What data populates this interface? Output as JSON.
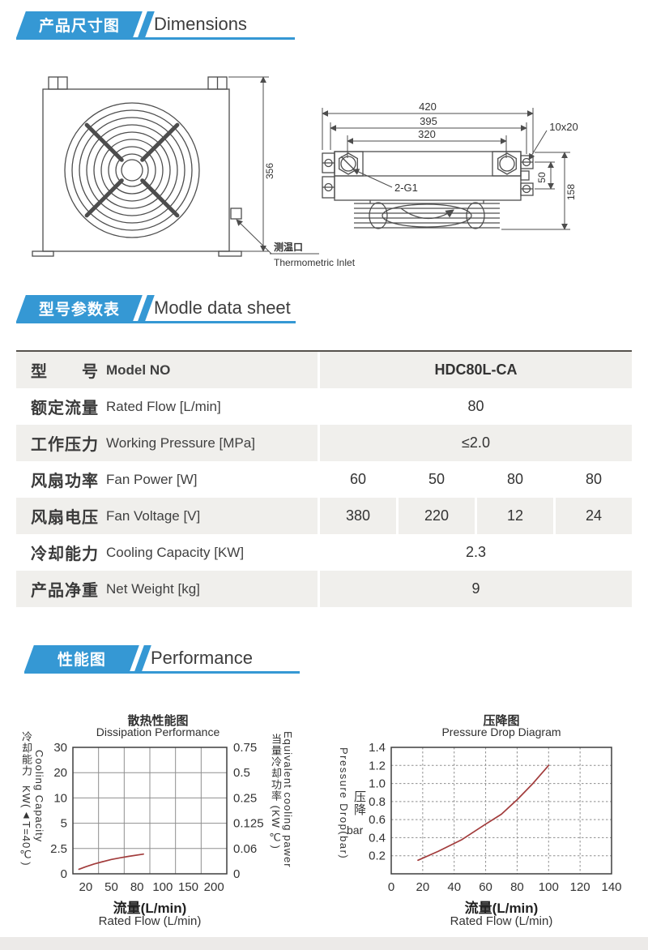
{
  "accent_blue": "#3598d4",
  "curve_red": "#a23c3c",
  "sections": {
    "dimensions": {
      "tab_zh": "产品尺寸图",
      "title_en": "Dimensions"
    },
    "datasheet": {
      "tab_zh": "型号参数表",
      "title_en": "Modle data sheet"
    },
    "performance": {
      "tab_zh": "性能图",
      "title_en": "Performance"
    }
  },
  "drawing": {
    "front_height": "356",
    "thermometric_zh": "测温口",
    "thermometric_en": "Thermometric Inlet",
    "width_outer": "420",
    "width_mid": "395",
    "width_ports": "320",
    "slot_size": "10x20",
    "ports_label": "2-G1",
    "height_side": "158",
    "hole_offset": "50"
  },
  "table": {
    "rows": [
      {
        "zh": "型　　号",
        "en": "Model NO",
        "values": [
          "HDC80L-CA"
        ],
        "span": true,
        "header": true
      },
      {
        "zh": "额定流量",
        "en": "Rated Flow [L/min]",
        "values": [
          "80"
        ],
        "span": true,
        "header": false
      },
      {
        "zh": "工作压力",
        "en": "Working Pressure [MPa]",
        "values": [
          "≤2.0"
        ],
        "span": true,
        "header": false
      },
      {
        "zh": "风扇功率",
        "en": "Fan Power [W]",
        "values": [
          "60",
          "50",
          "80",
          "80"
        ],
        "span": false,
        "header": false
      },
      {
        "zh": "风扇电压",
        "en": "Fan Voltage [V]",
        "values": [
          "380",
          "220",
          "12",
          "24"
        ],
        "span": false,
        "header": false
      },
      {
        "zh": "冷却能力",
        "en": "Cooling Capacity [KW]",
        "values": [
          "2.3"
        ],
        "span": true,
        "header": false
      },
      {
        "zh": "产品净重",
        "en": "Net Weight [kg]",
        "values": [
          "9"
        ],
        "span": true,
        "header": false
      }
    ]
  },
  "chart_data": [
    {
      "type": "line",
      "title": "散热性能图",
      "subtitle": "Dissipation Performance",
      "xlabel": "流量(L/min)",
      "xlabel_en": "Rated Flow (L/min)",
      "ylabel_left_zh": "冷却能力",
      "ylabel_left_unit": "KW(▲T=40℃)",
      "ylabel_left_en": "Cooling Capacity",
      "ylabel_right_zh": "当量冷却功率 (KW ℃)",
      "ylabel_right_en": "Equivalent cooling pawer",
      "x_ticks": {
        "labels": [
          "20",
          "50",
          "80",
          "100",
          "150",
          "200"
        ],
        "mode": "band"
      },
      "y_ticks": {
        "labels": [
          "30",
          "20",
          "10",
          "5",
          "2.5",
          "0"
        ]
      },
      "y2_ticks": {
        "labels": [
          "0.75",
          "0.5",
          "0.25",
          "0.125",
          "0.06",
          "0"
        ]
      },
      "grid": "solid",
      "series": [
        {
          "name": "cooling-capacity-kw",
          "color": "#a23c3c",
          "points": [
            [
              12,
              0.45
            ],
            [
              20,
              0.7
            ],
            [
              30,
              0.98
            ],
            [
              40,
              1.2
            ],
            [
              50,
              1.42
            ],
            [
              60,
              1.58
            ],
            [
              70,
              1.72
            ],
            [
              85,
              1.95
            ]
          ]
        }
      ]
    },
    {
      "type": "line",
      "title": "压降图",
      "subtitle": "Pressure Drop Diagram",
      "xlabel": "流量(L/min)",
      "xlabel_en": "Rated Flow (L/min)",
      "ylabel_zh": "压降",
      "ylabel_unit": "bar",
      "ylabel_en": "Pressure Drop(bar)",
      "x_ticks": {
        "labels": [
          "0",
          "20",
          "40",
          "60",
          "80",
          "100",
          "120",
          "140"
        ],
        "mode": "edge"
      },
      "y_ticks": {
        "labels": [
          "1.4",
          "1.2",
          "1.0",
          "0.8",
          "0.6",
          "0.4",
          "0.2"
        ],
        "bottom_value": "0"
      },
      "grid": "dotted",
      "series": [
        {
          "name": "pressure-drop-bar",
          "color": "#a23c3c",
          "points": [
            [
              17,
              0.15
            ],
            [
              30,
              0.25
            ],
            [
              45,
              0.38
            ],
            [
              60,
              0.55
            ],
            [
              70,
              0.66
            ],
            [
              80,
              0.82
            ],
            [
              90,
              1.0
            ],
            [
              100,
              1.2
            ]
          ]
        }
      ]
    }
  ]
}
